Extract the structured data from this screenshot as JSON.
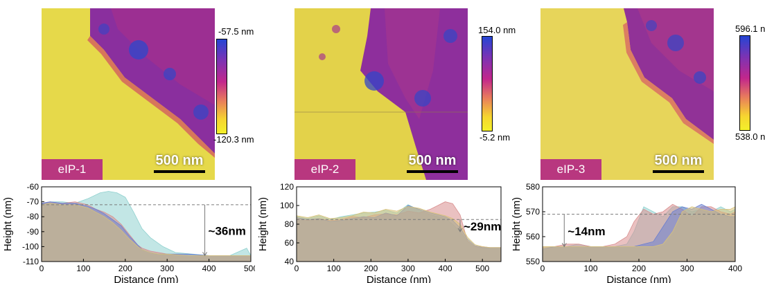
{
  "panels": [
    {
      "label": "eIP-1",
      "scale": "500 nm",
      "cmax": "-57.5 nm",
      "cmin": "-120.3 nm"
    },
    {
      "label": "eIP-2",
      "scale": "500 nm",
      "cmax": "154.0 nm",
      "cmin": "-5.2 nm"
    },
    {
      "label": "eIP-3",
      "scale": "500 nm",
      "cmax": "596.1 nm",
      "cmin": "538.0 nm"
    }
  ],
  "colors": {
    "series": [
      "#8fd1cf",
      "#d88e8e",
      "#6a7fd0",
      "#d8c27a"
    ],
    "overlap": "#8d8a7c",
    "tag": "#b8377f"
  },
  "chart_data": [
    {
      "type": "area",
      "xlabel": "Distance (nm)",
      "ylabel": "Height (nm)",
      "xlim": [
        0,
        500
      ],
      "ylim": [
        -110,
        -60
      ],
      "xticks": [
        0,
        100,
        200,
        300,
        400,
        500
      ],
      "yticks": [
        -110,
        -100,
        -90,
        -80,
        -70,
        -60
      ],
      "reference_y": -72,
      "annotation": "~36nm",
      "annotation_x": 390,
      "series": [
        {
          "x": [
            0,
            20,
            50,
            80,
            110,
            140,
            160,
            180,
            200,
            220,
            240,
            260,
            290,
            320,
            360,
            400,
            450,
            490,
            500
          ],
          "values": [
            -71,
            -70,
            -70,
            -71,
            -68,
            -64,
            -63,
            -64,
            -67,
            -77,
            -88,
            -94,
            -100,
            -104,
            -105,
            -106,
            -106,
            -101,
            -106
          ]
        },
        {
          "x": [
            0,
            20,
            50,
            80,
            110,
            130,
            150,
            170,
            190,
            210,
            230,
            240,
            260,
            280,
            300,
            350,
            400,
            450,
            500
          ],
          "values": [
            -71,
            -70,
            -71,
            -70,
            -72,
            -75,
            -77,
            -80,
            -85,
            -92,
            -99,
            -101,
            -103,
            -104,
            -105,
            -106,
            -106,
            -106,
            -106
          ]
        },
        {
          "x": [
            0,
            20,
            50,
            80,
            110,
            130,
            150,
            170,
            190,
            210,
            230,
            240,
            260,
            280,
            300,
            350,
            400,
            450,
            500
          ],
          "values": [
            -71,
            -70,
            -71,
            -71,
            -73,
            -75,
            -78,
            -82,
            -86,
            -93,
            -99,
            -102,
            -104,
            -105,
            -105,
            -105,
            -106,
            -106,
            -106
          ]
        },
        {
          "x": [
            0,
            20,
            50,
            80,
            110,
            130,
            150,
            170,
            190,
            210,
            230,
            240,
            260,
            280,
            300,
            350,
            400,
            450,
            500
          ],
          "values": [
            -72,
            -71,
            -72,
            -72,
            -74,
            -77,
            -80,
            -84,
            -89,
            -95,
            -100,
            -102,
            -104,
            -105,
            -105,
            -106,
            -106,
            -106,
            -106
          ]
        }
      ]
    },
    {
      "type": "area",
      "xlabel": "Distance (nm)",
      "ylabel": "Height (nm)",
      "xlim": [
        0,
        550
      ],
      "ylim": [
        40,
        120
      ],
      "xticks": [
        0,
        100,
        200,
        300,
        400,
        500
      ],
      "yticks": [
        40,
        60,
        80,
        100,
        120
      ],
      "reference_y": 85,
      "annotation": "~29nm",
      "annotation_x": 440,
      "series": [
        {
          "x": [
            0,
            30,
            60,
            90,
            120,
            150,
            180,
            210,
            240,
            270,
            300,
            330,
            360,
            380,
            400,
            420,
            440,
            460,
            480,
            500,
            520,
            550
          ],
          "values": [
            88,
            86,
            89,
            85,
            88,
            90,
            92,
            93,
            95,
            92,
            101,
            95,
            90,
            88,
            86,
            80,
            72,
            62,
            56,
            54,
            54,
            54
          ]
        },
        {
          "x": [
            0,
            30,
            60,
            90,
            120,
            150,
            180,
            210,
            240,
            270,
            300,
            330,
            360,
            380,
            400,
            420,
            440,
            460,
            480,
            500,
            520,
            550
          ],
          "values": [
            86,
            84,
            86,
            84,
            85,
            88,
            87,
            90,
            91,
            90,
            94,
            92,
            96,
            100,
            104,
            102,
            90,
            62,
            56,
            56,
            55,
            55
          ]
        },
        {
          "x": [
            0,
            30,
            60,
            90,
            120,
            150,
            180,
            210,
            240,
            270,
            300,
            330,
            360,
            380,
            400,
            420,
            440,
            460,
            480,
            500,
            520,
            550
          ],
          "values": [
            87,
            85,
            86,
            83,
            84,
            86,
            88,
            87,
            92,
            89,
            100,
            96,
            92,
            90,
            88,
            84,
            76,
            64,
            57,
            55,
            55,
            55
          ]
        },
        {
          "x": [
            0,
            30,
            60,
            90,
            120,
            150,
            180,
            210,
            240,
            270,
            300,
            330,
            360,
            380,
            400,
            420,
            440,
            460,
            480,
            500,
            520,
            550
          ],
          "values": [
            89,
            87,
            90,
            86,
            87,
            89,
            93,
            92,
            96,
            94,
            99,
            97,
            93,
            91,
            89,
            86,
            80,
            66,
            58,
            56,
            55,
            55
          ]
        }
      ]
    },
    {
      "type": "area",
      "xlabel": "Distance (nm)",
      "ylabel": "Height (nm)",
      "xlim": [
        0,
        400
      ],
      "ylim": [
        550,
        580
      ],
      "xticks": [
        0,
        100,
        200,
        300,
        400
      ],
      "yticks": [
        550,
        560,
        570,
        580
      ],
      "reference_y": 569,
      "annotation": "~14nm",
      "annotation_x": 45,
      "series": [
        {
          "x": [
            0,
            25,
            50,
            75,
            100,
            125,
            150,
            175,
            190,
            210,
            230,
            250,
            270,
            290,
            310,
            330,
            350,
            370,
            390,
            400
          ],
          "values": [
            556,
            556,
            556,
            557,
            556,
            556,
            556,
            557,
            562,
            572,
            570,
            568,
            572,
            572,
            570,
            571,
            570,
            572,
            570,
            571
          ]
        },
        {
          "x": [
            0,
            25,
            50,
            75,
            100,
            125,
            150,
            175,
            190,
            210,
            230,
            250,
            270,
            290,
            310,
            330,
            350,
            370,
            390,
            400
          ],
          "values": [
            556,
            556,
            557,
            557,
            556,
            556,
            557,
            560,
            566,
            571,
            569,
            570,
            573,
            571,
            568,
            572,
            572,
            570,
            569,
            570
          ]
        },
        {
          "x": [
            0,
            25,
            50,
            75,
            100,
            125,
            150,
            175,
            190,
            210,
            230,
            250,
            270,
            290,
            310,
            330,
            350,
            370,
            390,
            400
          ],
          "values": [
            555,
            556,
            556,
            556,
            556,
            556,
            556,
            556,
            556,
            557,
            558,
            564,
            570,
            572,
            571,
            573,
            571,
            569,
            568,
            568
          ]
        },
        {
          "x": [
            0,
            25,
            50,
            75,
            100,
            125,
            150,
            175,
            190,
            210,
            230,
            250,
            270,
            290,
            310,
            330,
            350,
            370,
            390,
            400
          ],
          "values": [
            556,
            556,
            556,
            556,
            556,
            556,
            556,
            556,
            556,
            556,
            556,
            557,
            562,
            570,
            572,
            571,
            570,
            571,
            571,
            572
          ]
        }
      ]
    }
  ]
}
